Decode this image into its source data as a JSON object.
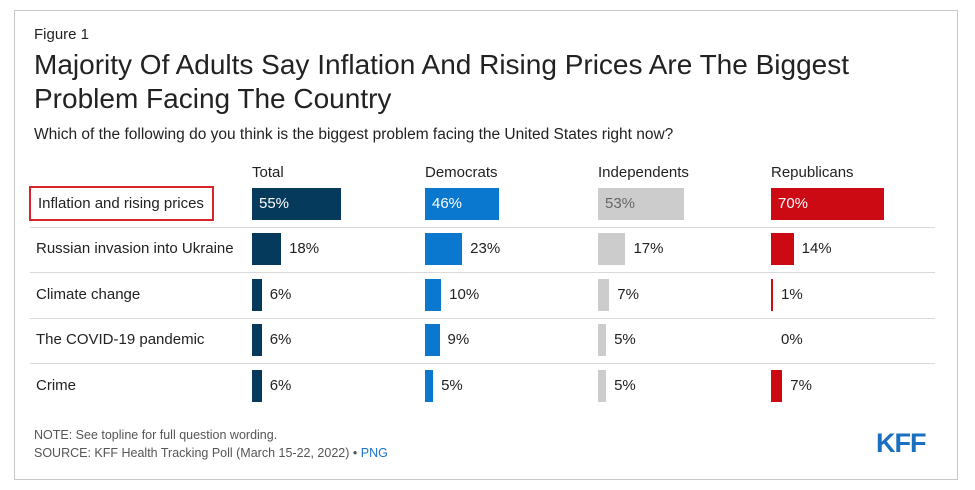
{
  "figure_label": "Figure 1",
  "title": "Majority Of Adults Say Inflation And Rising Prices Are The Biggest Problem Facing The Country",
  "subtitle": "Which of the following do you think is the biggest problem facing the United States right now?",
  "note": "NOTE: See topline for full question wording.",
  "source_text": "SOURCE: KFF Health Tracking Poll (March 15-22, 2022) •",
  "source_link": "PNG",
  "logo": "KFF",
  "chart_data": {
    "type": "bar",
    "orientation": "horizontal",
    "layout": "small-multiples",
    "categories": [
      "Inflation and rising prices",
      "Russian invasion into Ukraine",
      "Climate change",
      "The COVID-19 pandemic",
      "Crime"
    ],
    "highlighted_category": "Inflation and rising prices",
    "value_format": "percent",
    "series": [
      {
        "name": "Total",
        "color": "#063a5c",
        "values": [
          55,
          18,
          6,
          6,
          6
        ],
        "labels": [
          "55%",
          "18%",
          "6%",
          "6%",
          "6%"
        ]
      },
      {
        "name": "Democrats",
        "color": "#0a78cf",
        "values": [
          46,
          23,
          10,
          9,
          5
        ],
        "labels": [
          "46%",
          "23%",
          "10%",
          "9%",
          "5%"
        ]
      },
      {
        "name": "Independents",
        "color": "#cccccc",
        "values": [
          53,
          17,
          7,
          5,
          5
        ],
        "labels": [
          "53%",
          "17%",
          "7%",
          "5%",
          "5%"
        ]
      },
      {
        "name": "Republicans",
        "color": "#cc0a14",
        "values": [
          70,
          14,
          1,
          0,
          7
        ],
        "labels": [
          "70%",
          "14%",
          "1%",
          "0%",
          "7%"
        ]
      }
    ]
  }
}
